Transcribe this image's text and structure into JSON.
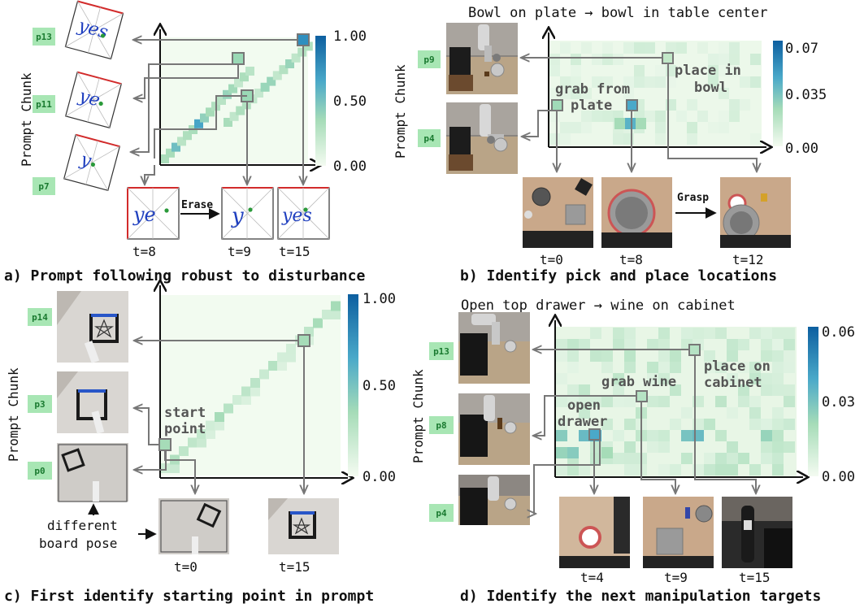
{
  "panels": [
    {
      "id": "a",
      "caption": "a) Prompt following robust to disturbance",
      "title": "",
      "ylabel": "Prompt Chunk",
      "colorbar": {
        "max": "1.00",
        "mid": "0.50",
        "min": "0.00"
      },
      "chips": [
        "p13",
        "p11",
        "p7"
      ],
      "time_labels": [
        "t=8",
        "t=9",
        "t=15"
      ],
      "action_labels": [
        "Erase"
      ],
      "annotations": [],
      "bottom_note": []
    },
    {
      "id": "b",
      "caption": "b) Identify pick and place locations",
      "title": "Bowl on plate → bowl in table center",
      "ylabel": "Prompt Chunk",
      "colorbar": {
        "max": "0.07",
        "mid": "0.035",
        "min": "0.00"
      },
      "chips": [
        "p9",
        "p4"
      ],
      "time_labels": [
        "t=0",
        "t=8",
        "t=12"
      ],
      "action_labels": [
        "Grasp"
      ],
      "annotations": [
        [
          "grab from",
          "plate"
        ],
        [
          "place in",
          "bowl"
        ]
      ],
      "bottom_note": []
    },
    {
      "id": "c",
      "caption": "c) First identify starting point in prompt",
      "title": "",
      "ylabel": "Prompt Chunk",
      "colorbar": {
        "max": "1.00",
        "mid": "0.50",
        "min": "0.00"
      },
      "chips": [
        "p14",
        "p3",
        "p0"
      ],
      "time_labels": [
        "t=0",
        "t=15"
      ],
      "action_labels": [],
      "annotations": [
        [
          "start",
          "point"
        ]
      ],
      "bottom_note": [
        "different",
        "board pose"
      ]
    },
    {
      "id": "d",
      "caption": "d) Identify the next manipulation targets",
      "title": "Open top drawer → wine on cabinet",
      "ylabel": "Prompt Chunk",
      "colorbar": {
        "max": "0.06",
        "mid": "0.03",
        "min": "0.00"
      },
      "chips": [
        "p13",
        "p8",
        "p4"
      ],
      "time_labels": [
        "t=4",
        "t=9",
        "t=15"
      ],
      "action_labels": [],
      "annotations": [
        [
          "open",
          "drawer"
        ],
        [
          "grab wine"
        ],
        [
          "place on",
          "cabinet"
        ]
      ],
      "bottom_note": []
    }
  ],
  "colors": {
    "heat_low": "#f2fbf0",
    "heat_high": "#0d5fa0",
    "box": "#777777",
    "chip_bg": "#a8e6b4",
    "chip_text": "#1a7a30",
    "annotation": "#555555",
    "handwriting": "#1f3fbf",
    "board_edge": "#d22b2b",
    "dot": "#2a9a3a"
  }
}
